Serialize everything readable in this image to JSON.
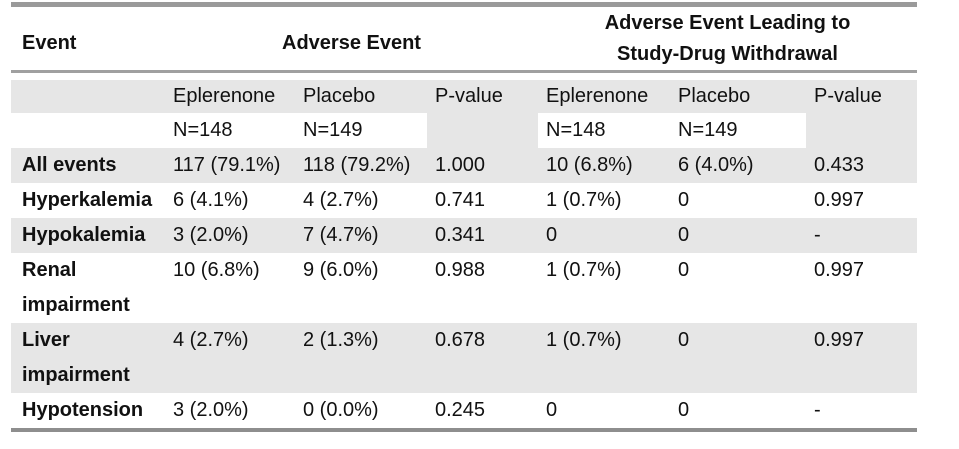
{
  "table": {
    "header": {
      "event_col": "Event",
      "group1_title": "Adverse Event",
      "group2_title_line1": "Adverse Event Leading to",
      "group2_title_line2": "Study-Drug Withdrawal"
    },
    "subheader": {
      "g1_arm1": "Eplerenone",
      "g1_arm2": "Placebo",
      "g1_pvalue": "P-value",
      "g2_arm1": "Eplerenone",
      "g2_arm2": "Placebo",
      "g2_pvalue": "P-value"
    },
    "n_row": {
      "g1_n1": "N=148",
      "g1_n2": "N=149",
      "g2_n1": "N=148",
      "g2_n2": "N=149"
    },
    "rows": [
      {
        "label": "All events",
        "cells": [
          "117 (79.1%)",
          "118 (79.2%)",
          "1.000",
          "10 (6.8%)",
          "6 (4.0%)",
          "0.433"
        ]
      },
      {
        "label": "Hyperkalemia",
        "cells": [
          "6 (4.1%)",
          "4 (2.7%)",
          "0.741",
          "1 (0.7%)",
          "0",
          "0.997"
        ]
      },
      {
        "label": "Hypokalemia",
        "cells": [
          "3 (2.0%)",
          "7 (4.7%)",
          "0.341",
          "0",
          "0",
          "-"
        ]
      },
      {
        "label": "Renal impairment",
        "cells": [
          "10 (6.8%)",
          "9 (6.0%)",
          "0.988",
          "1 (0.7%)",
          "0",
          "0.997"
        ]
      },
      {
        "label": "Liver impairment",
        "cells": [
          "4 (2.7%)",
          "2 (1.3%)",
          "0.678",
          "1 (0.7%)",
          "0",
          "0.997"
        ]
      },
      {
        "label": "Hypotension",
        "cells": [
          "3 (2.0%)",
          "0 (0.0%)",
          "0.245",
          "0",
          "0",
          "-"
        ]
      }
    ],
    "colors": {
      "band_gray": "#e6e6e6",
      "rule_top": "#9a9a9a",
      "rule_mid": "#a0a0a0",
      "rule_bottom": "#8e8e8e",
      "text": "#111111"
    }
  }
}
